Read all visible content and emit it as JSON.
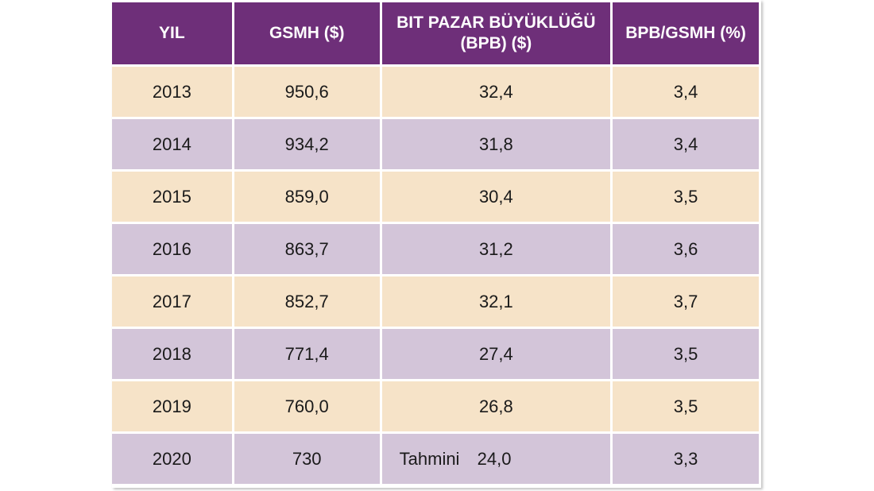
{
  "chart_data": {
    "type": "table",
    "columns": [
      "YIL",
      "GSMH ($)",
      "BIT PAZAR BÜYÜKLÜĞÜ (BPB) ($)",
      "BPB/GSMH (%)"
    ],
    "header_lines": {
      "bpb_line1": "BIT PAZAR BÜYÜKLÜĞÜ",
      "bpb_line2": "(BPB) ($)"
    },
    "rows": [
      {
        "year": "2013",
        "gsmh": "950,6",
        "bpb": "32,4",
        "ratio": "3,4"
      },
      {
        "year": "2014",
        "gsmh": "934,2",
        "bpb": "31,8",
        "ratio": "3,4"
      },
      {
        "year": "2015",
        "gsmh": "859,0",
        "bpb": "30,4",
        "ratio": "3,5"
      },
      {
        "year": "2016",
        "gsmh": "863,7",
        "bpb": "31,2",
        "ratio": "3,6"
      },
      {
        "year": "2017",
        "gsmh": "852,7",
        "bpb": "32,1",
        "ratio": "3,7"
      },
      {
        "year": "2018",
        "gsmh": "771,4",
        "bpb": "27,4",
        "ratio": "3,5"
      },
      {
        "year": "2019",
        "gsmh": "760,0",
        "bpb": "26,8",
        "ratio": "3,5"
      },
      {
        "year": "2020",
        "gsmh": "730",
        "bpb_note": "Tahmini",
        "bpb": "24,0",
        "ratio": "3,3"
      }
    ]
  },
  "colors": {
    "header": "#6e2f79",
    "row_even": "#f6e3c8",
    "row_odd": "#d3c5d9"
  }
}
